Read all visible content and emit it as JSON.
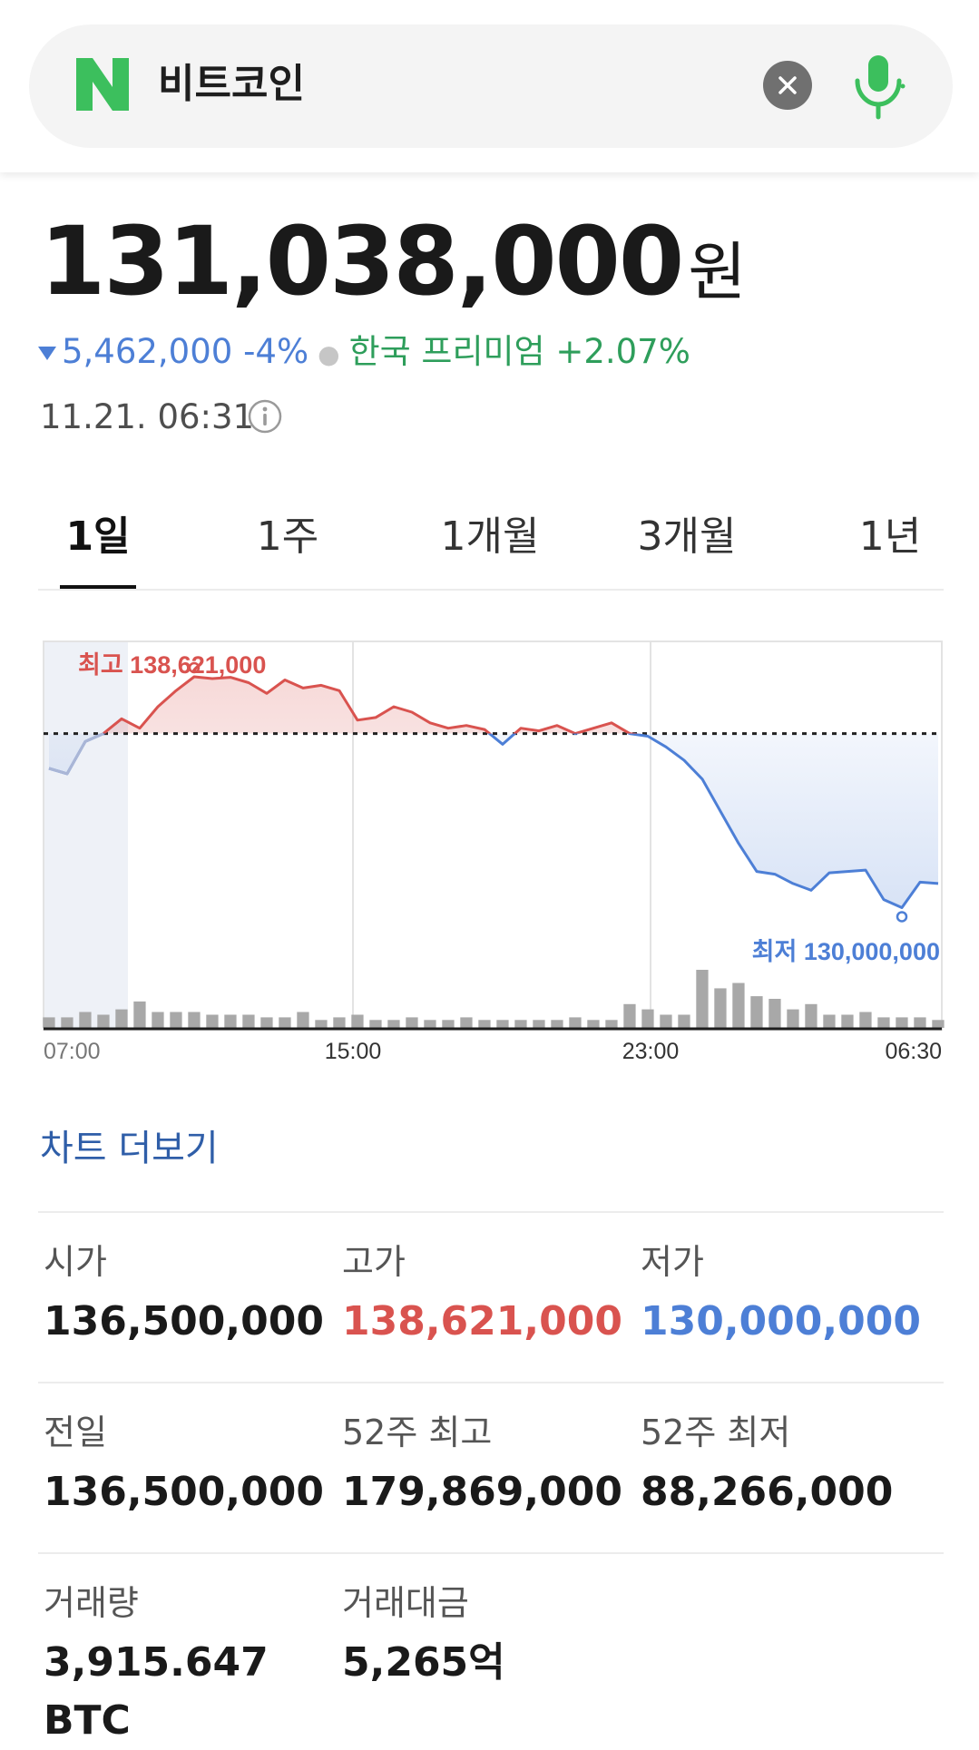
{
  "search": {
    "query": "비트코인"
  },
  "quote": {
    "price": "131,038,000",
    "unit": "원",
    "change": "5,462,000 -4%",
    "premium": "한국 프리미엄 +2.07%",
    "timestamp": "11.21. 06:31"
  },
  "tabs": [
    {
      "label": "1일",
      "active": true
    },
    {
      "label": "1주",
      "active": false
    },
    {
      "label": "1개월",
      "active": false
    },
    {
      "label": "3개월",
      "active": false
    },
    {
      "label": "1년",
      "active": false
    }
  ],
  "chart_data": {
    "type": "line",
    "x_ticks": [
      "07:00",
      "15:00",
      "23:00",
      "06:30"
    ],
    "high_label": "최고 138,621,000",
    "low_label": "최저 130,000,000",
    "reference": 136500000,
    "ylim": [
      129000000,
      139500000
    ],
    "values": [
      135200000,
      135000000,
      136200000,
      136500000,
      137050000,
      136700000,
      137500000,
      138100000,
      138621000,
      138550000,
      138600000,
      138400000,
      138000000,
      138500000,
      138200000,
      138300000,
      138100000,
      137000000,
      137100000,
      137500000,
      137300000,
      136900000,
      136700000,
      136800000,
      136650000,
      136100000,
      136700000,
      136600000,
      136800000,
      136500000,
      136700000,
      136900000,
      136500000,
      136400000,
      136000000,
      135500000,
      134800000,
      133600000,
      132400000,
      131350000,
      131250000,
      130900000,
      130650000,
      131300000,
      131350000,
      131400000,
      130300000,
      130000000,
      130950000,
      130900000
    ],
    "volume": [
      4,
      4,
      6,
      5,
      7,
      10,
      6,
      6,
      6,
      5,
      5,
      5,
      4,
      4,
      6,
      3,
      4,
      5,
      3,
      3,
      4,
      3,
      3,
      4,
      3,
      3,
      3,
      3,
      3,
      4,
      3,
      3,
      9,
      7,
      5,
      5,
      22,
      15,
      17,
      12,
      11,
      7,
      9,
      5,
      5,
      6,
      4,
      4,
      4,
      3
    ],
    "colors": {
      "above": "#d9534f",
      "below": "#4d7fd6",
      "volume": "#a8a8a8"
    }
  },
  "more_chart": "차트 더보기",
  "stats": {
    "open_label": "시가",
    "open": "136,500,000",
    "high_label": "고가",
    "high": "138,621,000",
    "low_label": "저가",
    "low": "130,000,000",
    "prev_label": "전일",
    "prev": "136,500,000",
    "w52_high_label": "52주 최고",
    "w52_high": "179,869,000",
    "w52_low_label": "52주 최저",
    "w52_low": "88,266,000",
    "volume_label": "거래량",
    "volume": "3,915.647",
    "volume_unit": "BTC",
    "turnover_label": "거래대금",
    "turnover": "5,265억"
  }
}
